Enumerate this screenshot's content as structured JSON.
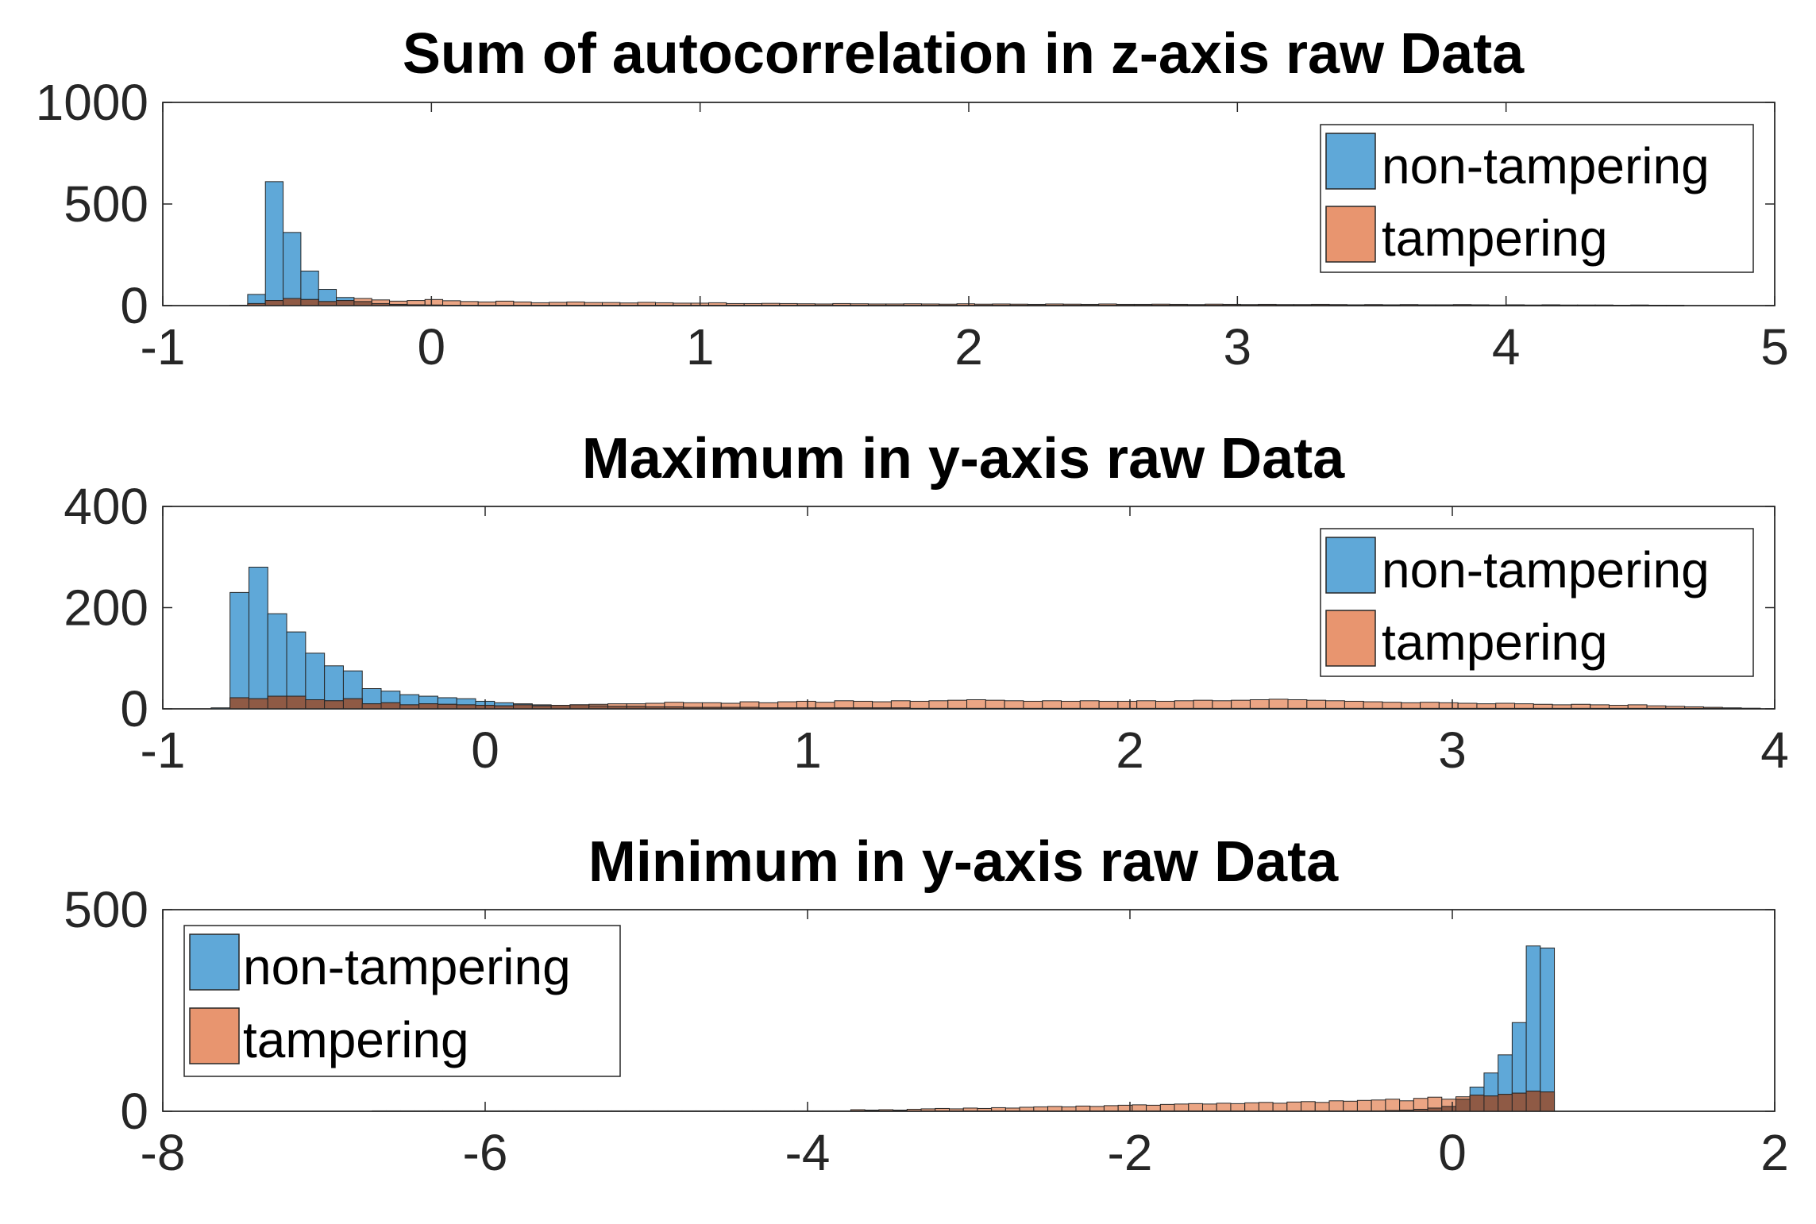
{
  "colors": {
    "non_tampering": "#5fa8d8",
    "tampering": "#e8956f",
    "overlap": "#8f5a45",
    "bar_edge": "#262626"
  },
  "chart_data": [
    {
      "type": "bar",
      "title": "Sum of autocorrelation in z-axis raw Data",
      "xlim": [
        -1,
        5
      ],
      "ylim": [
        0,
        1000
      ],
      "xticks": [
        "-1",
        "0",
        "1",
        "2",
        "3",
        "4",
        "5"
      ],
      "yticks": [
        "0",
        "500",
        "1000"
      ],
      "grid": false,
      "legend_position": "top-right",
      "series": [
        {
          "name": "non-tampering",
          "bin_start": -0.75,
          "bin_width": 0.066,
          "values": [
            2,
            55,
            610,
            360,
            170,
            80,
            40,
            20,
            10,
            6,
            4,
            3,
            2,
            2,
            1,
            1,
            1,
            1,
            1,
            1,
            1,
            1,
            1,
            1,
            1,
            1,
            1,
            1,
            1,
            1,
            1,
            1,
            1,
            1,
            1,
            1,
            1,
            1,
            1,
            1,
            1,
            1,
            1,
            1,
            1,
            1,
            1,
            1,
            1,
            1,
            1,
            1,
            1,
            1,
            1,
            1,
            1,
            1,
            1,
            1,
            1,
            1,
            1,
            1,
            1,
            1,
            1,
            1,
            1,
            1,
            1,
            1,
            1,
            1,
            1,
            1,
            1,
            1,
            1,
            1,
            1,
            1
          ]
        },
        {
          "name": "tampering",
          "bin_start": -0.75,
          "bin_width": 0.066,
          "values": [
            0,
            10,
            25,
            35,
            30,
            20,
            25,
            35,
            28,
            22,
            25,
            30,
            24,
            20,
            18,
            22,
            18,
            14,
            16,
            18,
            15,
            15,
            13,
            16,
            14,
            12,
            12,
            14,
            10,
            10,
            11,
            10,
            9,
            8,
            10,
            9,
            8,
            8,
            9,
            8,
            7,
            9,
            7,
            8,
            7,
            6,
            8,
            7,
            6,
            8,
            6,
            6,
            7,
            6,
            5,
            7,
            6,
            5,
            6,
            5,
            5,
            6,
            5,
            4,
            5,
            4,
            5,
            4,
            4,
            5,
            4,
            3,
            4,
            3,
            4,
            3,
            3,
            3,
            2,
            3,
            2,
            2
          ]
        }
      ]
    },
    {
      "type": "bar",
      "title": "Maximum in y-axis raw Data",
      "xlim": [
        -1,
        4
      ],
      "ylim": [
        0,
        400
      ],
      "xticks": [
        "-1",
        "0",
        "1",
        "2",
        "3",
        "4"
      ],
      "yticks": [
        "0",
        "200",
        "400"
      ],
      "grid": false,
      "legend_position": "top-right",
      "series": [
        {
          "name": "non-tampering",
          "bin_start": -0.85,
          "bin_width": 0.0586,
          "values": [
            2,
            230,
            280,
            188,
            152,
            110,
            85,
            75,
            40,
            35,
            28,
            25,
            22,
            20,
            15,
            12,
            10,
            8,
            7,
            8,
            6,
            5,
            5,
            4,
            4,
            3,
            3,
            3,
            3,
            2,
            2,
            2,
            2,
            2,
            2,
            2,
            2,
            1,
            1,
            1,
            1,
            1,
            1,
            1,
            1,
            1,
            1,
            1,
            1,
            1,
            1,
            1,
            1,
            1,
            1,
            1,
            1,
            1,
            1,
            1,
            1,
            1,
            1,
            1,
            1,
            1,
            1,
            1,
            1,
            1,
            1,
            1,
            1,
            1,
            1,
            1,
            1,
            1,
            1,
            1,
            1,
            1
          ]
        },
        {
          "name": "tampering",
          "bin_start": -0.85,
          "bin_width": 0.0586,
          "values": [
            0,
            22,
            20,
            25,
            25,
            18,
            16,
            20,
            10,
            12,
            8,
            10,
            9,
            8,
            7,
            6,
            8,
            6,
            7,
            8,
            9,
            10,
            10,
            11,
            13,
            12,
            12,
            11,
            14,
            12,
            14,
            15,
            13,
            16,
            15,
            14,
            16,
            15,
            16,
            17,
            18,
            17,
            16,
            15,
            16,
            15,
            16,
            15,
            15,
            16,
            15,
            16,
            17,
            16,
            17,
            18,
            19,
            18,
            17,
            16,
            15,
            14,
            13,
            12,
            13,
            12,
            11,
            10,
            11,
            10,
            9,
            8,
            9,
            8,
            7,
            8,
            6,
            5,
            4,
            3,
            2,
            1
          ]
        }
      ]
    },
    {
      "type": "bar",
      "title": "Minimum in y-axis raw Data",
      "xlim": [
        -8,
        2
      ],
      "ylim": [
        0,
        500
      ],
      "xticks": [
        "-8",
        "-6",
        "-4",
        "-2",
        "0",
        "2"
      ],
      "yticks": [
        "0",
        "500"
      ],
      "grid": false,
      "legend_position": "top-left",
      "series": [
        {
          "name": "non-tampering",
          "bin_start": -6.7,
          "bin_width": 0.0873,
          "values": [
            1,
            1,
            1,
            1,
            1,
            1,
            1,
            1,
            1,
            1,
            1,
            1,
            1,
            1,
            1,
            1,
            1,
            1,
            1,
            1,
            1,
            1,
            1,
            1,
            1,
            1,
            1,
            1,
            1,
            1,
            1,
            1,
            1,
            1,
            1,
            1,
            1,
            1,
            1,
            1,
            1,
            1,
            1,
            1,
            1,
            1,
            1,
            1,
            1,
            1,
            1,
            1,
            1,
            1,
            1,
            1,
            1,
            1,
            1,
            1,
            1,
            1,
            1,
            1,
            1,
            1,
            1,
            1,
            1,
            1,
            1,
            1,
            2,
            3,
            5,
            8,
            12,
            30,
            60,
            95,
            140,
            220,
            410,
            405
          ]
        },
        {
          "name": "tampering",
          "bin_start": -6.7,
          "bin_width": 0.0873,
          "values": [
            1,
            1,
            1,
            1,
            1,
            1,
            1,
            1,
            1,
            1,
            1,
            1,
            1,
            1,
            1,
            1,
            1,
            1,
            1,
            1,
            1,
            1,
            1,
            1,
            1,
            1,
            1,
            1,
            1,
            1,
            1,
            1,
            1,
            1,
            4,
            3,
            4,
            3,
            5,
            6,
            7,
            6,
            8,
            7,
            9,
            8,
            10,
            11,
            12,
            11,
            13,
            12,
            14,
            15,
            16,
            15,
            17,
            18,
            19,
            18,
            20,
            19,
            21,
            22,
            20,
            23,
            24,
            22,
            26,
            25,
            27,
            28,
            30,
            26,
            32,
            35,
            30,
            36,
            40,
            38,
            42,
            45,
            50,
            48
          ]
        }
      ]
    }
  ]
}
